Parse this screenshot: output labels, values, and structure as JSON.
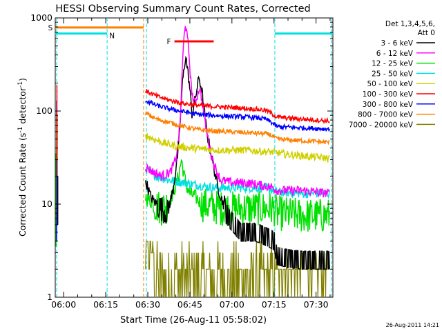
{
  "chart_data": {
    "type": "line",
    "title": "HESSI Observing Summary Count Rates, Corrected",
    "xlabel": "Start Time (26-Aug-11 05:58:02)",
    "ylabel": "Corrected Count Rate (s",
    "ylabel_sup1": "-1",
    "ylabel_mid": " detector",
    "ylabel_sup2": "-1",
    "ylabel_end": ")",
    "x_units": "minutes of day (UT)",
    "xlim": [
      357,
      456
    ],
    "ylim": [
      1,
      1000
    ],
    "yscale": "log",
    "grid": false,
    "x_ticks": [
      {
        "value": 360,
        "label": "06:00"
      },
      {
        "value": 375,
        "label": "06:15"
      },
      {
        "value": 390,
        "label": "06:30"
      },
      {
        "value": 405,
        "label": "06:45"
      },
      {
        "value": 420,
        "label": "07:00"
      },
      {
        "value": 435,
        "label": "07:15"
      },
      {
        "value": 450,
        "label": "07:30"
      }
    ],
    "y_ticks": [
      {
        "value": 1,
        "label": "1"
      },
      {
        "value": 10,
        "label": "10"
      },
      {
        "value": 100,
        "label": "100"
      },
      {
        "value": 1000,
        "label": "1000"
      }
    ],
    "legend": {
      "placement": "right",
      "header": [
        "Det 1,3,4,5,6,",
        "Att 0"
      ],
      "entries": [
        {
          "label": "3 - 6 keV",
          "color": "#000000"
        },
        {
          "label": "6 - 12 keV",
          "color": "#ff00ff"
        },
        {
          "label": "12 - 25 keV",
          "color": "#00e000"
        },
        {
          "label": "25 - 50 keV",
          "color": "#00e0e0"
        },
        {
          "label": "50 - 100 keV",
          "color": "#d0d000"
        },
        {
          "label": "100 - 300 keV",
          "color": "#ff0000"
        },
        {
          "label": "300 - 800 keV",
          "color": "#0000ff"
        },
        {
          "label": "800 - 7000 keV",
          "color": "#ff8000"
        },
        {
          "label": "7000 - 20000 keV",
          "color": "#808000"
        }
      ]
    },
    "flags": [
      {
        "label": "S",
        "color": "#ff8000",
        "x_start": 357,
        "x_end": 388.5,
        "y": 790
      },
      {
        "label": "N",
        "color": "#00e0e0",
        "x_start": 357,
        "x_end": 375.5,
        "y": 680
      },
      {
        "label": "N",
        "color": "#00e0e0",
        "x_start": 435.3,
        "x_end": 456,
        "y": 680,
        "show_label": false
      },
      {
        "label": "F",
        "color": "#ff0000",
        "x_start": 399.5,
        "x_end": 413.5,
        "y": 560
      }
    ],
    "dashed_lines": [
      {
        "x": 357.5,
        "color": "#00e0e0"
      },
      {
        "x": 375.5,
        "color": "#00e0e0"
      },
      {
        "x": 388.5,
        "color": "#ff8000"
      },
      {
        "x": 389.5,
        "color": "#00e0e0"
      },
      {
        "x": 435.3,
        "color": "#00e0e0"
      },
      {
        "x": 455.5,
        "color": "#00e0e0"
      }
    ],
    "series": [
      {
        "name": "3 - 6 keV",
        "color": "#000000",
        "noise": 0.06,
        "x": [
          389.2,
          391,
          393,
          395,
          397,
          399,
          401,
          402.3,
          403.5,
          404.8,
          405.8,
          407,
          408.3,
          409.5,
          411,
          413,
          415,
          417,
          419,
          421,
          423,
          425,
          428,
          430,
          432,
          434,
          435.2,
          436,
          440,
          445,
          450,
          454.8
        ],
        "y": [
          18,
          12,
          10,
          9,
          8,
          14,
          40,
          190,
          400,
          200,
          90,
          140,
          230,
          150,
          60,
          30,
          15,
          10,
          7,
          6,
          5,
          5,
          5,
          4.8,
          4.5,
          4.2,
          4.0,
          2.8,
          2.6,
          2.5,
          2.5,
          2.5
        ]
      },
      {
        "name": "6 - 12 keV",
        "color": "#ff00ff",
        "noise": 0.05,
        "x": [
          389.2,
          392,
          395,
          398,
          400,
          401.5,
          402.5,
          403.3,
          404.5,
          405.5,
          406.5,
          407.5,
          408.5,
          409.5,
          411,
          412.5,
          414,
          416,
          420,
          425,
          430,
          435,
          436,
          445,
          454.8
        ],
        "y": [
          25,
          22,
          20,
          22,
          30,
          70,
          380,
          900,
          500,
          180,
          120,
          140,
          180,
          120,
          60,
          35,
          25,
          18,
          17,
          17,
          16,
          15,
          14,
          14,
          13
        ]
      },
      {
        "name": "12 - 25 keV",
        "color": "#00e000",
        "noise": 0.08,
        "x": [
          389.2,
          392,
          395,
          397,
          399,
          401,
          402,
          403,
          404,
          405,
          407,
          409,
          412,
          416,
          420,
          425,
          430,
          435,
          436,
          445,
          454.8
        ],
        "y": [
          12,
          10,
          9,
          10,
          13,
          20,
          30,
          20,
          15,
          13,
          12,
          10,
          9.5,
          9,
          9,
          9,
          9,
          9,
          8,
          7.5,
          7.5
        ]
      },
      {
        "name": "25 - 50 keV",
        "color": "#00e0e0",
        "noise": 0.05,
        "x": [
          389.2,
          393,
          398,
          403,
          408,
          413,
          418,
          425,
          432,
          435.2,
          436,
          445,
          454.8
        ],
        "y": [
          24,
          20,
          18,
          17,
          16,
          15,
          15,
          15,
          15,
          14,
          13.5,
          13,
          13
        ]
      },
      {
        "name": "50 - 100 keV",
        "color": "#d0d000",
        "noise": 0.04,
        "x": [
          389.2,
          392,
          396,
          400,
          405,
          410,
          415,
          420,
          425,
          430,
          435,
          440,
          445,
          450,
          454.8
        ],
        "y": [
          55,
          50,
          45,
          42,
          40,
          39,
          38,
          38,
          38,
          37,
          36,
          34,
          33,
          32,
          31
        ]
      },
      {
        "name": "100 - 300 keV",
        "color": "#ff0000",
        "noise": 0.025,
        "x": [
          389.2,
          393,
          398,
          403,
          408,
          413,
          418,
          423,
          428,
          432,
          434,
          436,
          440,
          445,
          450,
          454.8
        ],
        "y": [
          165,
          145,
          130,
          120,
          115,
          112,
          110,
          108,
          105,
          102,
          95,
          86,
          84,
          82,
          80,
          78
        ]
      },
      {
        "name": "300 - 800 keV",
        "color": "#0000ff",
        "noise": 0.025,
        "x": [
          389.2,
          393,
          398,
          403,
          408,
          413,
          418,
          423,
          428,
          432,
          434,
          436,
          440,
          445,
          450,
          454.8
        ],
        "y": [
          130,
          115,
          105,
          98,
          92,
          90,
          88,
          87,
          85,
          82,
          76,
          68,
          67,
          66,
          65,
          64
        ]
      },
      {
        "name": "800 - 7000 keV",
        "color": "#ff8000",
        "noise": 0.025,
        "x": [
          389.2,
          393,
          398,
          403,
          408,
          413,
          418,
          423,
          428,
          432,
          434,
          436,
          440,
          445,
          450,
          454.8
        ],
        "y": [
          95,
          82,
          75,
          68,
          63,
          61,
          60,
          59,
          58,
          57,
          55,
          50,
          49,
          48,
          47,
          46
        ]
      },
      {
        "name": "7000 - 20000 keV",
        "color": "#808000",
        "noise": 0.0,
        "x": [
          389.2,
          392,
          395,
          400,
          405,
          410,
          415,
          420,
          425,
          430,
          435,
          436,
          445,
          454.8
        ],
        "y": [
          3.5,
          2.5,
          1.8,
          1.5,
          1.6,
          1.7,
          1.7,
          1.8,
          1.8,
          1.9,
          1.8,
          2.3,
          2.3,
          2.3
        ]
      }
    ],
    "early_spikes": [
      {
        "x": 357.3,
        "y_low": 3.5,
        "y_high": 35,
        "color": "#00e000"
      },
      {
        "x": 357.5,
        "y_low": 4,
        "y_high": 130,
        "color": "#0000ff"
      },
      {
        "x": 357.6,
        "y_low": 30,
        "y_high": 190,
        "color": "#ff0000"
      },
      {
        "x": 357.8,
        "y_low": 8,
        "y_high": 90,
        "color": "#ff8000"
      },
      {
        "x": 357.9,
        "y_low": 6,
        "y_high": 20,
        "color": "#000000"
      }
    ]
  },
  "footer_date": "26-Aug-2011 14:21"
}
